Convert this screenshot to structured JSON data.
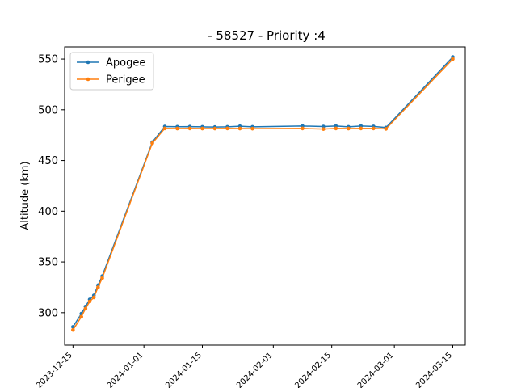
{
  "chart_data": {
    "type": "line",
    "title": "- 58527 - Priority :4",
    "xlabel": "",
    "ylabel": "Altitude (km)",
    "ylim": [
      268,
      562
    ],
    "xlim": [
      "2023-12-13",
      "2024-03-18"
    ],
    "yticks": [
      300,
      350,
      400,
      450,
      500,
      550
    ],
    "xticks": [
      "2023-12-15",
      "2024-01-01",
      "2024-01-15",
      "2024-02-01",
      "2024-02-15",
      "2024-03-01",
      "2024-03-15"
    ],
    "grid": false,
    "legend": "upper-left",
    "series": [
      {
        "name": "Apogee",
        "color": "#1f77b4",
        "points": [
          [
            "2023-12-15",
            286
          ],
          [
            "2023-12-17",
            299
          ],
          [
            "2023-12-18",
            306
          ],
          [
            "2023-12-19",
            313
          ],
          [
            "2023-12-20",
            317
          ],
          [
            "2023-12-21",
            327
          ],
          [
            "2023-12-22",
            336
          ],
          [
            "2024-01-03",
            468
          ],
          [
            "2024-01-06",
            483.5
          ],
          [
            "2024-01-09",
            483.3
          ],
          [
            "2024-01-12",
            483.4
          ],
          [
            "2024-01-15",
            483.2
          ],
          [
            "2024-01-18",
            483.0
          ],
          [
            "2024-01-21",
            483.2
          ],
          [
            "2024-01-24",
            483.8
          ],
          [
            "2024-01-27",
            483.2
          ],
          [
            "2024-02-08",
            484.0
          ],
          [
            "2024-02-13",
            483.5
          ],
          [
            "2024-02-16",
            484.0
          ],
          [
            "2024-02-19",
            483.2
          ],
          [
            "2024-02-22",
            484.0
          ],
          [
            "2024-02-25",
            483.6
          ],
          [
            "2024-02-28",
            482.5
          ],
          [
            "2024-03-15",
            552
          ]
        ]
      },
      {
        "name": "Perigee",
        "color": "#ff7f0e",
        "points": [
          [
            "2023-12-15",
            283
          ],
          [
            "2023-12-17",
            296
          ],
          [
            "2023-12-18",
            304
          ],
          [
            "2023-12-19",
            311
          ],
          [
            "2023-12-20",
            315
          ],
          [
            "2023-12-21",
            325
          ],
          [
            "2023-12-22",
            334
          ],
          [
            "2024-01-03",
            467
          ],
          [
            "2024-01-06",
            481.6
          ],
          [
            "2024-01-09",
            481.5
          ],
          [
            "2024-01-12",
            481.6
          ],
          [
            "2024-01-15",
            481.5
          ],
          [
            "2024-01-18",
            481.5
          ],
          [
            "2024-01-21",
            481.6
          ],
          [
            "2024-01-24",
            481.5
          ],
          [
            "2024-01-27",
            481.4
          ],
          [
            "2024-02-08",
            481.6
          ],
          [
            "2024-02-13",
            481.0
          ],
          [
            "2024-02-16",
            481.6
          ],
          [
            "2024-02-19",
            481.5
          ],
          [
            "2024-02-22",
            481.6
          ],
          [
            "2024-02-25",
            481.6
          ],
          [
            "2024-02-28",
            481.2
          ],
          [
            "2024-03-15",
            550
          ]
        ]
      }
    ]
  }
}
